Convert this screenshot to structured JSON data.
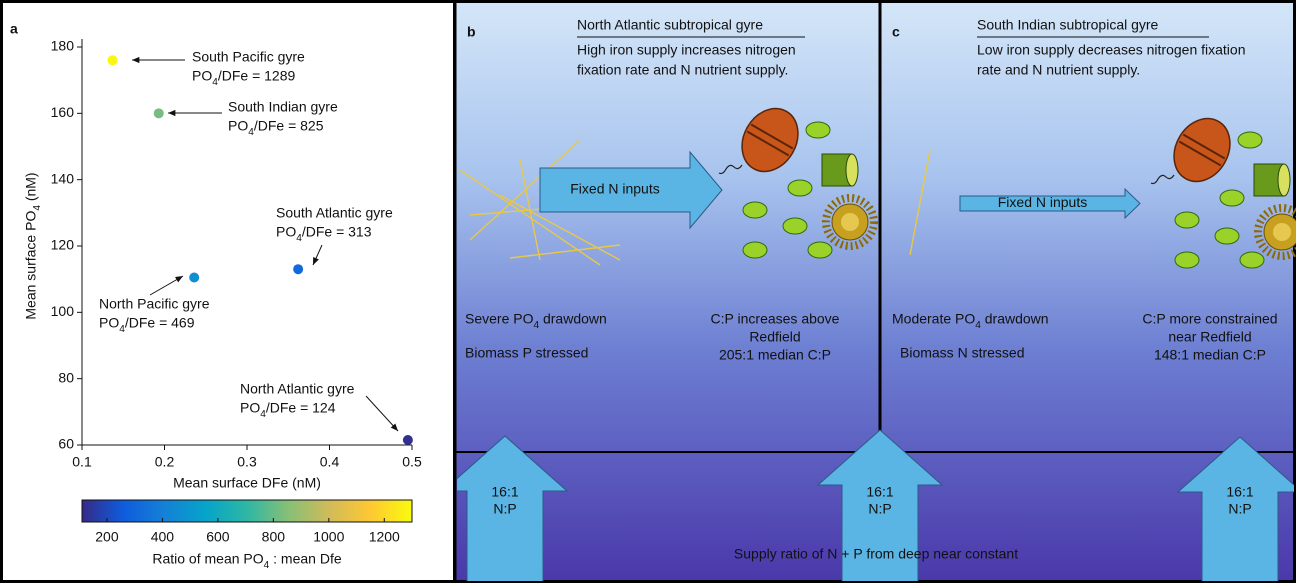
{
  "chart_data": {
    "type": "scatter",
    "panel_label": "a",
    "x_label": "Mean surface DFe (nM)",
    "y_label": "Mean surface PO4 (nM)",
    "names": [
      "South Pacific gyre",
      "South Indian gyre",
      "South Atlantic gyre",
      "North Pacific gyre",
      "North Atlantic gyre"
    ],
    "x": [
      0.137,
      0.193,
      0.362,
      0.236,
      0.495
    ],
    "values": [
      176,
      160,
      113,
      110.5,
      61.5
    ],
    "color_values": [
      1289,
      825,
      313,
      469,
      124
    ],
    "color_value_labels": [
      "PO4/DFe = 1289",
      "PO4/DFe = 825",
      "PO4/DFe = 313",
      "PO4/DFe = 469",
      "PO4/DFe = 124"
    ],
    "xlim": [
      0.1,
      0.5
    ],
    "xticks": [
      0.1,
      0.2,
      0.3,
      0.4,
      0.5
    ],
    "ylim": [
      60,
      180
    ],
    "yticks": [
      60,
      80,
      100,
      120,
      140,
      160,
      180
    ],
    "colorbar": {
      "label": "Ratio of mean PO4 : mean Dfe",
      "clim": [
        110,
        1300
      ],
      "ticks": [
        200,
        400,
        600,
        800,
        1000,
        1200
      ],
      "colormap": [
        "#352a87",
        "#0f5cdd",
        "#1481d6",
        "#06a4ca",
        "#2eb7a4",
        "#87bf77",
        "#d1bb59",
        "#fec832",
        "#f9fb0e"
      ]
    }
  },
  "panels": [
    {
      "label": "b",
      "title": "North Atlantic subtropical gyre",
      "subtitle": [
        "High iron supply increases nitrogen",
        "fixation rate and N nutrient supply."
      ],
      "arrow_label": "Fixed N inputs",
      "left_notes": [
        "Severe PO4 drawdown",
        "Biomass P stressed"
      ],
      "right_notes": [
        "C:P increases above",
        "Redfield",
        "205:1 median C:P"
      ]
    },
    {
      "label": "c",
      "title": "South Indian subtropical gyre",
      "subtitle": [
        "Low iron supply decreases nitrogen fixation",
        "rate and N nutrient supply."
      ],
      "arrow_label": "Fixed N inputs",
      "left_notes": [
        "Moderate PO4 drawdown",
        "Biomass N stressed"
      ],
      "right_notes": [
        "C:P more constrained",
        "near Redfield",
        "148:1 median C:P"
      ]
    }
  ],
  "supply": {
    "arrow_label": [
      "16:1",
      "N:P"
    ],
    "caption": "Supply ratio of N + P from deep near constant"
  }
}
